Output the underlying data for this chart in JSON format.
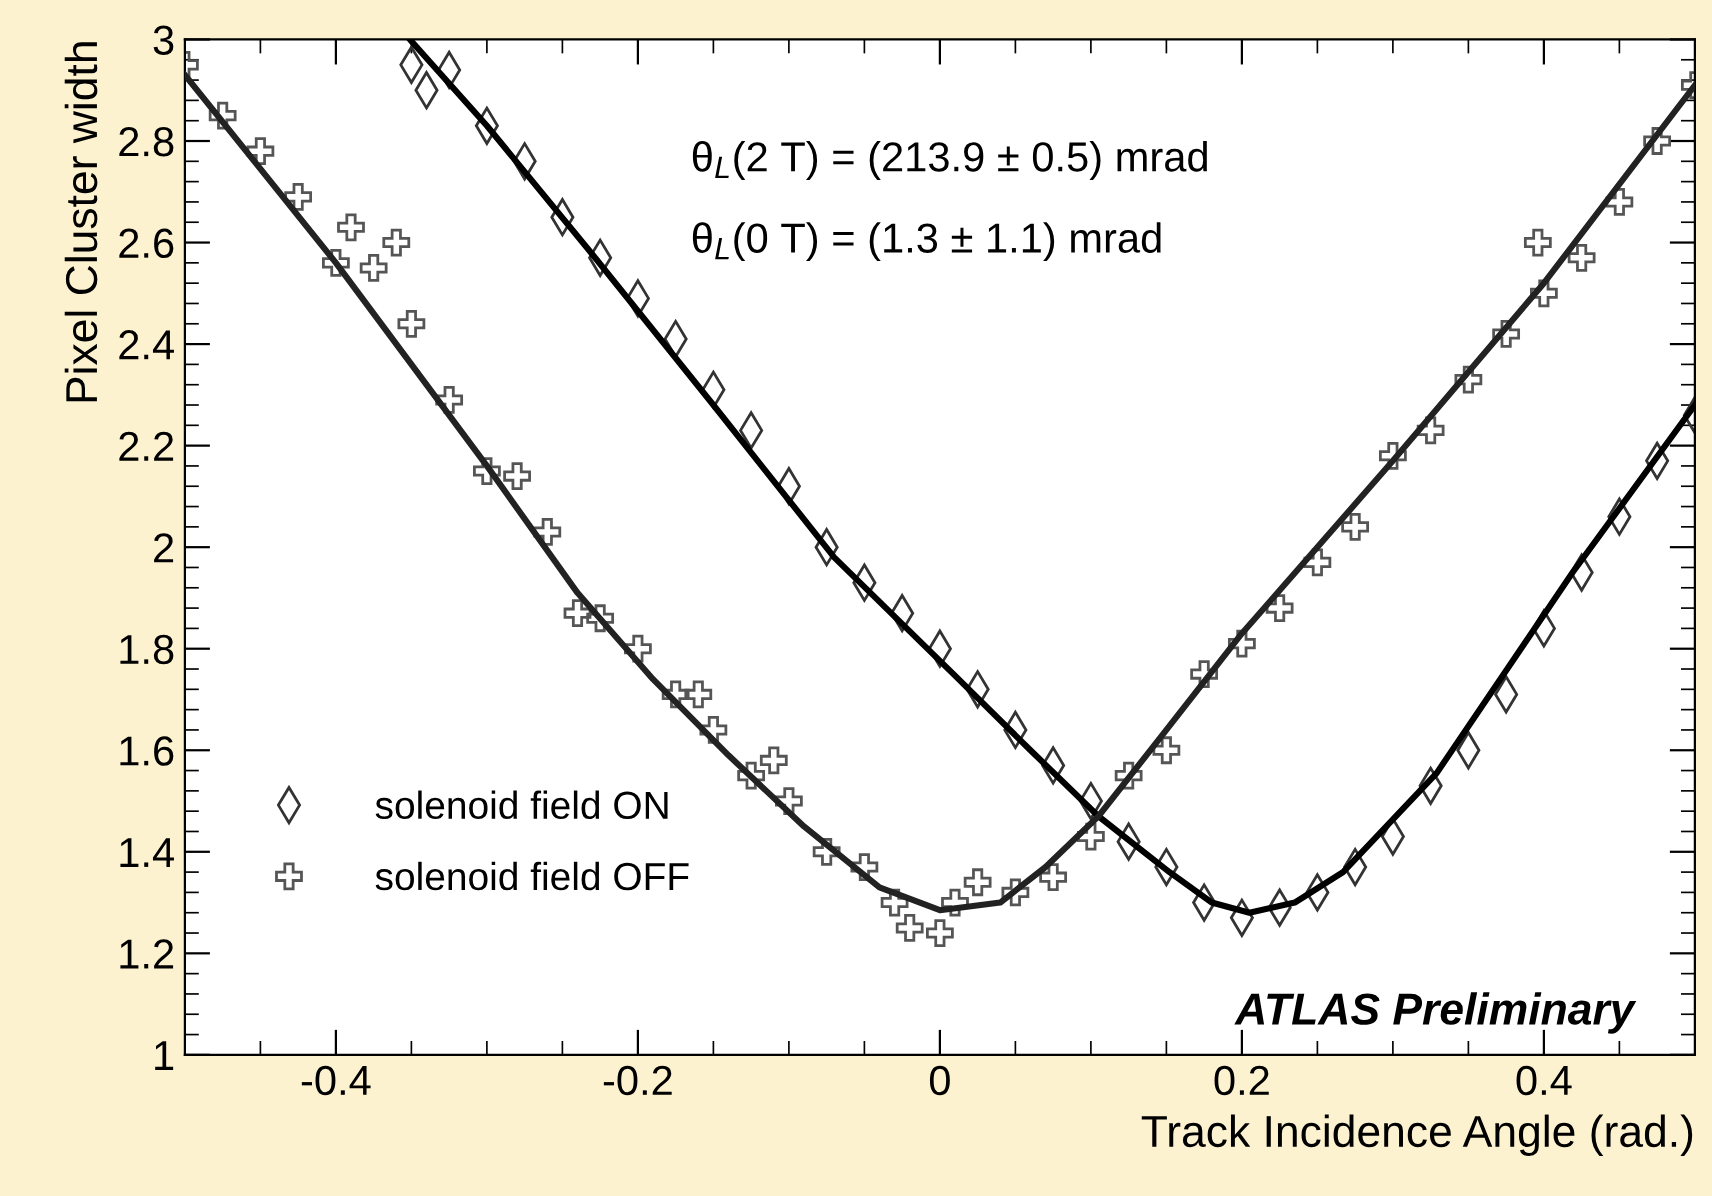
{
  "chart_data": {
    "type": "scatter",
    "xlabel": "Track Incidence Angle (rad.)",
    "ylabel": "Pixel Cluster width",
    "xlim": [
      -0.5,
      0.5
    ],
    "ylim": [
      1,
      3
    ],
    "xticks": [
      -0.4,
      -0.2,
      0,
      0.2,
      0.4
    ],
    "yticks": [
      1,
      1.2,
      1.4,
      1.6,
      1.8,
      2,
      2.2,
      2.4,
      2.6,
      2.8,
      3
    ],
    "grid": false,
    "legend": "bottom left",
    "annotations": [
      "θ$_{L}$(2 T) = (213.9 ± 0.5) mrad",
      "θ$_{L}$(0 T) = (1.3 ± 1.1) mrad",
      "ATLAS Preliminary"
    ],
    "series": [
      {
        "name": "solenoid field ON",
        "marker": "diamond",
        "color": "#333333",
        "x": [
          -0.35,
          -0.34,
          -0.325,
          -0.3,
          -0.275,
          -0.25,
          -0.225,
          -0.2,
          -0.175,
          -0.15,
          -0.125,
          -0.1,
          -0.075,
          -0.05,
          -0.025,
          0,
          0.025,
          0.05,
          0.075,
          0.1,
          0.125,
          0.15,
          0.175,
          0.2,
          0.225,
          0.25,
          0.275,
          0.3,
          0.325,
          0.35,
          0.375,
          0.4,
          0.425,
          0.45,
          0.475,
          0.5
        ],
        "values": [
          2.95,
          2.9,
          2.94,
          2.83,
          2.76,
          2.65,
          2.57,
          2.49,
          2.41,
          2.31,
          2.23,
          2.12,
          2.0,
          1.93,
          1.87,
          1.8,
          1.72,
          1.64,
          1.57,
          1.5,
          1.42,
          1.37,
          1.3,
          1.27,
          1.29,
          1.32,
          1.37,
          1.43,
          1.53,
          1.6,
          1.71,
          1.84,
          1.95,
          2.06,
          2.17,
          2.26
        ]
      },
      {
        "name": "solenoid field OFF",
        "marker": "cross",
        "color": "#555555",
        "x": [
          -0.5,
          -0.475,
          -0.45,
          -0.425,
          -0.4,
          -0.39,
          -0.375,
          -0.36,
          -0.35,
          -0.325,
          -0.3,
          -0.28,
          -0.26,
          -0.24,
          -0.225,
          -0.2,
          -0.175,
          -0.16,
          -0.15,
          -0.125,
          -0.11,
          -0.1,
          -0.075,
          -0.05,
          -0.03,
          -0.02,
          0,
          0.01,
          0.025,
          0.05,
          0.075,
          0.1,
          0.125,
          0.15,
          0.175,
          0.2,
          0.225,
          0.25,
          0.275,
          0.3,
          0.325,
          0.35,
          0.375,
          0.396,
          0.4,
          0.425,
          0.45,
          0.475,
          0.5
        ],
        "values": [
          2.95,
          2.85,
          2.78,
          2.69,
          2.56,
          2.63,
          2.55,
          2.6,
          2.44,
          2.29,
          2.15,
          2.14,
          2.03,
          1.87,
          1.86,
          1.8,
          1.71,
          1.71,
          1.64,
          1.55,
          1.58,
          1.5,
          1.4,
          1.37,
          1.3,
          1.25,
          1.24,
          1.3,
          1.34,
          1.32,
          1.35,
          1.43,
          1.55,
          1.6,
          1.75,
          1.81,
          1.88,
          1.97,
          2.04,
          2.18,
          2.23,
          2.33,
          2.42,
          2.6,
          2.5,
          2.57,
          2.68,
          2.8,
          2.91
        ]
      },
      {
        "type": "line",
        "line_style": "solid",
        "color": "#000000",
        "x": [
          -0.351,
          -0.3,
          -0.231,
          -0.15,
          -0.07,
          0.009,
          0.06,
          0.105,
          0.152,
          0.18,
          0.205,
          0.235,
          0.267,
          0.329,
          0.419,
          0.5
        ],
        "values": [
          3.0,
          2.83,
          2.58,
          2.28,
          1.98,
          1.75,
          1.6,
          1.47,
          1.36,
          1.3,
          1.28,
          1.3,
          1.36,
          1.555,
          1.95,
          2.28
        ]
      },
      {
        "type": "line",
        "line_style": "solid",
        "color": "#222222",
        "x": [
          -0.5,
          -0.4,
          -0.3,
          -0.24,
          -0.19,
          -0.14,
          -0.09,
          -0.04,
          0,
          0.04,
          0.07,
          0.105,
          0.15,
          0.2,
          0.3,
          0.4,
          0.5
        ],
        "values": [
          2.93,
          2.56,
          2.16,
          1.91,
          1.74,
          1.59,
          1.45,
          1.33,
          1.285,
          1.3,
          1.37,
          1.47,
          1.64,
          1.83,
          2.17,
          2.52,
          2.91
        ]
      }
    ]
  }
}
